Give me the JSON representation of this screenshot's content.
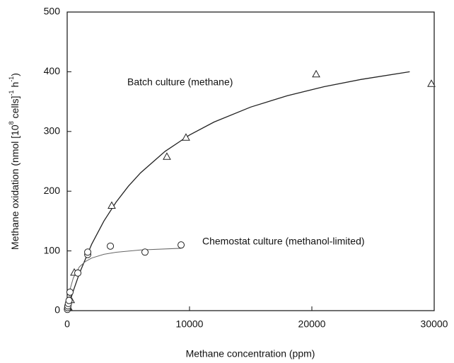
{
  "chart_data": {
    "type": "scatter",
    "x_label": "Methane concentration (ppm)",
    "y_label": [
      "Methane oxidation (nmol [10",
      "8",
      " cells]",
      "-1",
      " h",
      "-1",
      ")"
    ],
    "annotations": [
      "Batch culture (methane)",
      "Chemostat culture (methanol-limited)"
    ],
    "xlim": [
      0,
      30000
    ],
    "ylim": [
      0,
      500
    ],
    "xticks": [
      0,
      10000,
      20000,
      30000
    ],
    "yticks": [
      0,
      100,
      200,
      300,
      400,
      500
    ],
    "series": [
      {
        "marker": "triangle",
        "color": "#222222",
        "x": [
          100,
          300,
          580,
          3640,
          8150,
          9710,
          20350,
          29770
        ],
        "values": [
          6,
          18,
          64,
          176,
          258,
          290,
          396,
          380
        ]
      },
      {
        "marker": "circle",
        "color": "#222222",
        "x": [
          20,
          40,
          60,
          100,
          150,
          230,
          870,
          1680,
          1680,
          3530,
          6360,
          9310
        ],
        "values": [
          2,
          5,
          8,
          12,
          17,
          31,
          63,
          94,
          98,
          108,
          98,
          110
        ]
      }
    ],
    "curves": [
      {
        "color": "#222222",
        "x": [
          0,
          250,
          500,
          1000,
          2000,
          3000,
          4000,
          5000,
          6000,
          8000,
          10000,
          12000,
          15000,
          18000,
          21000,
          24000,
          28000
        ],
        "values": [
          0,
          17.2,
          33.3,
          62.5,
          111.1,
          150,
          181.8,
          208.3,
          230.8,
          266.7,
          294.1,
          315.8,
          340.9,
          360,
          375,
          387.1,
          400
        ]
      },
      {
        "color": "#666666",
        "x": [
          0,
          250,
          500,
          1000,
          1500,
          2000,
          3000,
          4000,
          6000,
          9300
        ],
        "values": [
          0,
          36.7,
          55,
          73.3,
          82.5,
          88,
          94.3,
          97.8,
          101.5,
          104.4
        ]
      }
    ]
  }
}
